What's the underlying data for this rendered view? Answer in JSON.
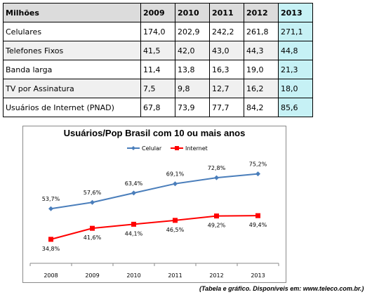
{
  "table": {
    "header": [
      "Milhões",
      "2009",
      "2010",
      "2011",
      "2012",
      "2013"
    ],
    "rows": [
      [
        "Celulares",
        "174,0",
        "202,9",
        "242,2",
        "261,8",
        "271,1"
      ],
      [
        "Telefones Fixos",
        "41,5",
        "42,0",
        "43,0",
        "44,3",
        "44,8"
      ],
      [
        "Banda larga",
        "11,4",
        "13,8",
        "16,3",
        "19,0",
        "21,3"
      ],
      [
        "TV por Assinatura",
        "7,5",
        "9,8",
        "12,7",
        "16,2",
        "18,0"
      ],
      [
        "Usuários de Internet (PNAD)",
        "67,8",
        "73,9",
        "77,7",
        "84,2",
        "85,6"
      ]
    ],
    "highlight_color": "#c6f1f5"
  },
  "chart_data": {
    "type": "line",
    "title": "Usuários/Pop Brasil com 10 ou mais anos",
    "categories": [
      "2008",
      "2009",
      "2010",
      "2011",
      "2012",
      "2013"
    ],
    "series": [
      {
        "name": "Celular",
        "values": [
          53.7,
          57.6,
          63.4,
          69.1,
          72.8,
          75.2
        ],
        "labels": [
          "53,7%",
          "57,6%",
          "63,4%",
          "69,1%",
          "72,8%",
          "75,2%"
        ],
        "color": "#4a7ebb",
        "marker": "diamond"
      },
      {
        "name": "Internet",
        "values": [
          34.8,
          41.6,
          44.1,
          46.5,
          49.2,
          49.4
        ],
        "labels": [
          "34,8%",
          "41,6%",
          "44,1%",
          "46,5%",
          "49,2%",
          "49,4%"
        ],
        "color": "#ff0000",
        "marker": "square"
      }
    ],
    "ylim": [
      20,
      85
    ],
    "grid": false,
    "legend": "top"
  },
  "source": "(Tabela e gráfico. Disponíveis em: www.teleco.com.br.)"
}
